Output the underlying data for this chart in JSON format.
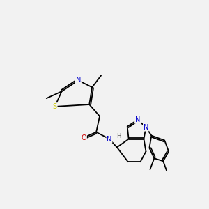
{
  "background_color": "#f2f2f2",
  "atom_colors": {
    "N": "#0000cc",
    "O": "#cc0000",
    "S": "#cccc00",
    "C": "#000000",
    "H": "#555555"
  },
  "bond_color": "#000000",
  "lw": 1.3,
  "fs": 7.0,
  "fs_small": 6.0
}
